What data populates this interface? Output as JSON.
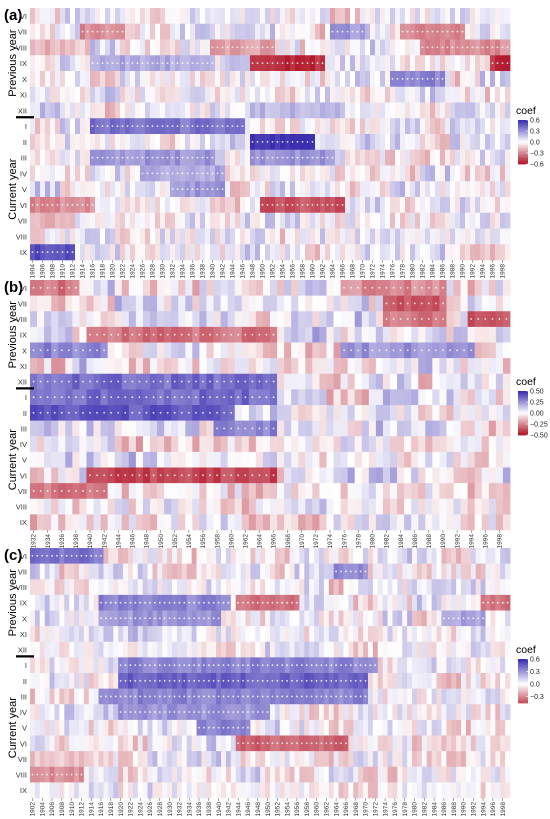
{
  "figure": {
    "legend_title": "coef",
    "group_label_previous": "Previous year",
    "group_label_current": "Current year",
    "scale_low_color": "#b2182b",
    "scale_mid_color": "#ffffff",
    "scale_high_color": "#3b2fb0",
    "significance_marker": "dotted"
  },
  "chart_data": [
    {
      "type": "heatmap",
      "panel_label": "(a)",
      "y_categories": [
        "VI",
        "VII",
        "VIII",
        "IX",
        "X",
        "XI",
        "XII",
        "I",
        "II",
        "III",
        "IV",
        "V",
        "VI",
        "VII",
        "VIII",
        "IX"
      ],
      "x_start": 1904,
      "x_end": 2000,
      "x_tick_step": 2,
      "x_tick_labels": [
        "1904",
        "1906",
        "1908",
        "1910",
        "1912",
        "1914",
        "1916",
        "1918",
        "1920",
        "1922",
        "1924",
        "1926",
        "1928",
        "1930",
        "1932",
        "1934",
        "1936",
        "1938",
        "1940",
        "1942",
        "1944",
        "1946",
        "1948",
        "1950",
        "1952",
        "1954",
        "1956",
        "1958",
        "1960",
        "1962",
        "1964",
        "1966",
        "1968",
        "1970",
        "1972",
        "1974",
        "1976",
        "1978",
        "1980",
        "1982",
        "1984",
        "1986",
        "1988",
        "1990",
        "1992",
        "1994",
        "1996",
        "1998"
      ],
      "colorbar_ticks": [
        "0.6",
        "0.3",
        "0.0",
        "-0.3",
        "-0.6"
      ],
      "colorbar_range": [
        -0.6,
        0.6
      ],
      "features": [
        {
          "row": 1,
          "from": 1914,
          "to": 1922,
          "value": -0.3
        },
        {
          "row": 1,
          "from": 1964,
          "to": 1970,
          "value": 0.3
        },
        {
          "row": 1,
          "from": 1978,
          "to": 1990,
          "value": -0.3
        },
        {
          "row": 2,
          "from": 1904,
          "to": 1912,
          "value": -0.2
        },
        {
          "row": 2,
          "from": 1940,
          "to": 1952,
          "value": -0.25
        },
        {
          "row": 2,
          "from": 1982,
          "to": 2000,
          "value": -0.3
        },
        {
          "row": 3,
          "from": 1916,
          "to": 1940,
          "value": 0.25
        },
        {
          "row": 3,
          "from": 1948,
          "to": 1962,
          "value": -0.55
        },
        {
          "row": 3,
          "from": 1996,
          "to": 2000,
          "value": -0.55
        },
        {
          "row": 4,
          "from": 1976,
          "to": 1986,
          "value": 0.35
        },
        {
          "row": 6,
          "from": 1948,
          "to": 1966,
          "value": 0.2
        },
        {
          "row": 7,
          "from": 1916,
          "to": 1946,
          "value": 0.4
        },
        {
          "row": 8,
          "from": 1948,
          "to": 1960,
          "value": 0.6
        },
        {
          "row": 9,
          "from": 1916,
          "to": 1940,
          "value": 0.3
        },
        {
          "row": 9,
          "from": 1948,
          "to": 1964,
          "value": 0.3
        },
        {
          "row": 10,
          "from": 1926,
          "to": 1942,
          "value": 0.25
        },
        {
          "row": 11,
          "from": 1932,
          "to": 1942,
          "value": 0.3
        },
        {
          "row": 12,
          "from": 1904,
          "to": 1916,
          "value": -0.3
        },
        {
          "row": 12,
          "from": 1950,
          "to": 1966,
          "value": -0.45
        },
        {
          "row": 13,
          "from": 1904,
          "to": 1912,
          "value": -0.2
        },
        {
          "row": 15,
          "from": 1904,
          "to": 1912,
          "value": 0.5
        }
      ]
    },
    {
      "type": "heatmap",
      "panel_label": "(b)",
      "y_categories": [
        "VI",
        "VII",
        "VIII",
        "IX",
        "X",
        "XI",
        "XII",
        "I",
        "II",
        "III",
        "IV",
        "V",
        "VI",
        "VII",
        "VIII",
        "IX"
      ],
      "x_start": 1932,
      "x_end": 2000,
      "x_tick_step": 2,
      "x_tick_labels": [
        "1932",
        "1934",
        "1936",
        "1938",
        "1940",
        "1942",
        "1944",
        "1946",
        "1948",
        "1950",
        "1952",
        "1954",
        "1956",
        "1958",
        "1960",
        "1962",
        "1964",
        "1966",
        "1968",
        "1970",
        "1972",
        "1974",
        "1976",
        "1978",
        "1980",
        "1982",
        "1984",
        "1986",
        "1988",
        "1990",
        "1992",
        "1994",
        "1996",
        "1998"
      ],
      "colorbar_ticks": [
        "0.50",
        "0.25",
        "0.00",
        "-0.25",
        "-0.50"
      ],
      "colorbar_range": [
        -0.5,
        0.5
      ],
      "features": [
        {
          "row": 0,
          "from": 1932,
          "to": 1938,
          "value": -0.3
        },
        {
          "row": 0,
          "from": 1976,
          "to": 1990,
          "value": -0.25
        },
        {
          "row": 1,
          "from": 1982,
          "to": 1990,
          "value": -0.35
        },
        {
          "row": 2,
          "from": 1982,
          "to": 1990,
          "value": -0.3
        },
        {
          "row": 2,
          "from": 1994,
          "to": 2000,
          "value": -0.35
        },
        {
          "row": 3,
          "from": 1940,
          "to": 1966,
          "value": -0.3
        },
        {
          "row": 4,
          "from": 1932,
          "to": 1942,
          "value": 0.3
        },
        {
          "row": 4,
          "from": 1976,
          "to": 1994,
          "value": 0.25
        },
        {
          "row": 6,
          "from": 1932,
          "to": 1966,
          "value": 0.35
        },
        {
          "row": 7,
          "from": 1932,
          "to": 1966,
          "value": 0.35
        },
        {
          "row": 8,
          "from": 1932,
          "to": 1960,
          "value": 0.4
        },
        {
          "row": 9,
          "from": 1958,
          "to": 1966,
          "value": 0.3
        },
        {
          "row": 12,
          "from": 1940,
          "to": 1966,
          "value": -0.4
        },
        {
          "row": 13,
          "from": 1932,
          "to": 1942,
          "value": -0.3
        }
      ]
    },
    {
      "type": "heatmap",
      "panel_label": "(c)",
      "y_categories": [
        "VI",
        "VII",
        "VIII",
        "IX",
        "X",
        "XI",
        "XII",
        "I",
        "II",
        "III",
        "IV",
        "V",
        "VI",
        "VII",
        "VIII",
        "IX"
      ],
      "x_start": 1902,
      "x_end": 2000,
      "x_tick_step": 2,
      "x_tick_labels": [
        "1902",
        "1904",
        "1906",
        "1908",
        "1910",
        "1912",
        "1914",
        "1916",
        "1918",
        "1920",
        "1922",
        "1924",
        "1926",
        "1928",
        "1930",
        "1932",
        "1934",
        "1936",
        "1938",
        "1940",
        "1942",
        "1944",
        "1946",
        "1948",
        "1950",
        "1952",
        "1954",
        "1956",
        "1958",
        "1960",
        "1962",
        "1964",
        "1966",
        "1968",
        "1970",
        "1972",
        "1974",
        "1976",
        "1978",
        "1980",
        "1982",
        "1984",
        "1986",
        "1988",
        "1990",
        "1992",
        "1994",
        "1996",
        "1998"
      ],
      "colorbar_ticks": [
        "0.6",
        "0.3",
        "0.0",
        "-0.3"
      ],
      "colorbar_range": [
        -0.45,
        0.6
      ],
      "features": [
        {
          "row": 0,
          "from": 1902,
          "to": 1916,
          "value": 0.4
        },
        {
          "row": 1,
          "from": 1964,
          "to": 1970,
          "value": 0.35
        },
        {
          "row": 3,
          "from": 1916,
          "to": 1942,
          "value": 0.35
        },
        {
          "row": 3,
          "from": 1944,
          "to": 1956,
          "value": -0.35
        },
        {
          "row": 3,
          "from": 1994,
          "to": 2000,
          "value": -0.35
        },
        {
          "row": 4,
          "from": 1916,
          "to": 1940,
          "value": 0.3
        },
        {
          "row": 4,
          "from": 1986,
          "to": 1994,
          "value": 0.25
        },
        {
          "row": 7,
          "from": 1920,
          "to": 1972,
          "value": 0.35
        },
        {
          "row": 8,
          "from": 1920,
          "to": 1970,
          "value": 0.45
        },
        {
          "row": 9,
          "from": 1916,
          "to": 1970,
          "value": 0.35
        },
        {
          "row": 10,
          "from": 1920,
          "to": 1950,
          "value": 0.3
        },
        {
          "row": 11,
          "from": 1936,
          "to": 1946,
          "value": 0.35
        },
        {
          "row": 12,
          "from": 1944,
          "to": 1966,
          "value": -0.4
        },
        {
          "row": 13,
          "from": 1902,
          "to": 1912,
          "value": -0.15
        },
        {
          "row": 14,
          "from": 1902,
          "to": 1912,
          "value": -0.3
        }
      ]
    }
  ]
}
